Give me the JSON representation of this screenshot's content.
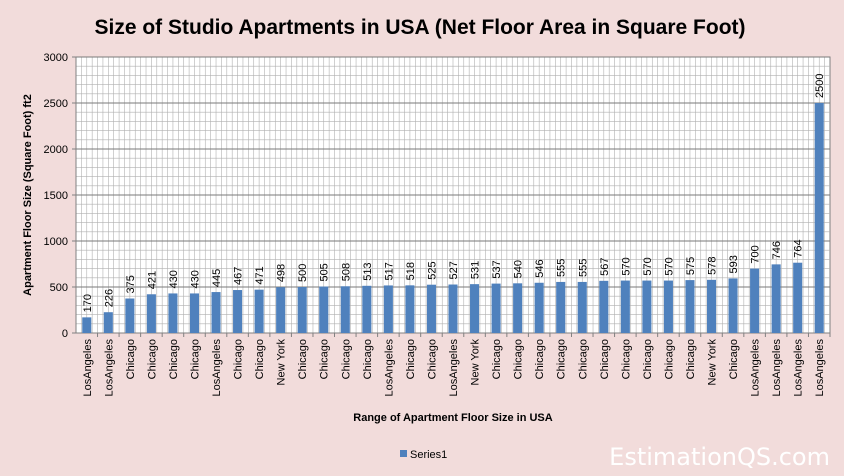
{
  "chart_data": {
    "type": "bar",
    "title": "Size of Studio Apartments in USA (Net Floor Area in Square Foot)",
    "xlabel": "Range of Apartment Floor Size in USA",
    "ylabel": "Apartment Floor Size (Square Foot) ft2",
    "ylim": [
      0,
      3000
    ],
    "yticks": [
      0,
      500,
      1000,
      1500,
      2000,
      2500,
      3000
    ],
    "grid": true,
    "legend": "bottom",
    "categories": [
      "LosAngeles",
      "LosAngeles",
      "Chicago",
      "Chicago",
      "Chicago",
      "Chicago",
      "LosAngeles",
      "Chicago",
      "Chicago",
      "New York",
      "Chicago",
      "Chicago",
      "Chicago",
      "Chicago",
      "LosAngeles",
      "Chicago",
      "Chicago",
      "LosAngeles",
      "New York",
      "Chicago",
      "Chicago",
      "Chicago",
      "Chicago",
      "Chicago",
      "Chicago",
      "Chicago",
      "Chicago",
      "Chicago",
      "Chicago",
      "New York",
      "Chicago",
      "LosAngeles",
      "LosAngeles",
      "LosAngeles",
      "LosAngeles"
    ],
    "series": [
      {
        "name": "Series1",
        "color": "#4f81bd",
        "values": [
          170,
          226,
          375,
          421,
          430,
          430,
          445,
          467,
          471,
          498,
          500,
          505,
          508,
          513,
          517,
          518,
          525,
          527,
          531,
          537,
          540,
          546,
          555,
          555,
          567,
          570,
          570,
          570,
          575,
          578,
          593,
          700,
          746,
          764,
          2500
        ]
      }
    ]
  },
  "watermark": "EstimationQS.com"
}
